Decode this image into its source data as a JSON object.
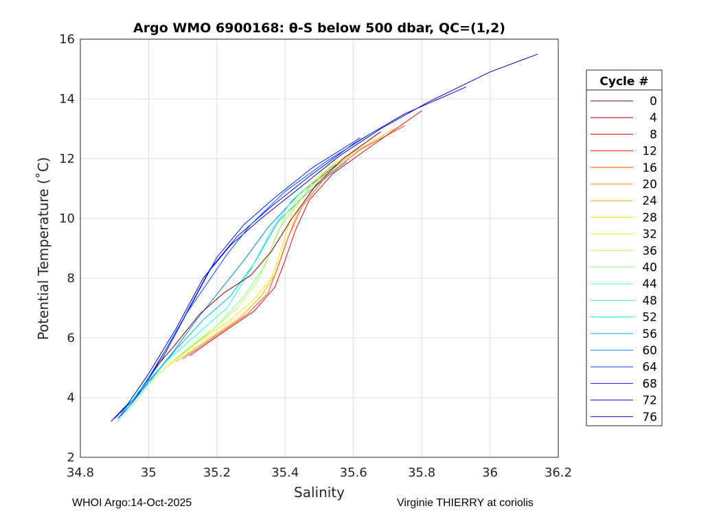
{
  "chart_data": {
    "type": "line",
    "title": "Argo WMO 6900168: θ-S below 500 dbar,  QC=(1,2)",
    "xlabel": "Salinity",
    "ylabel": "Potential Temperature (˚C)",
    "xlim": [
      34.8,
      36.2
    ],
    "ylim": [
      2,
      16
    ],
    "xticks": [
      "34.8",
      "35",
      "35.2",
      "35.4",
      "35.6",
      "35.8",
      "36",
      "36.2"
    ],
    "yticks": [
      "2",
      "4",
      "6",
      "8",
      "10",
      "12",
      "14",
      "16"
    ],
    "grid": true,
    "legend_title": "Cycle #",
    "legend_position": "right",
    "legend": [
      {
        "cycle": "0",
        "color": "#800000"
      },
      {
        "cycle": "4",
        "color": "#b30000"
      },
      {
        "cycle": "8",
        "color": "#e60000"
      },
      {
        "cycle": "12",
        "color": "#ff1a00"
      },
      {
        "cycle": "16",
        "color": "#ff4d00"
      },
      {
        "cycle": "20",
        "color": "#ff8000"
      },
      {
        "cycle": "24",
        "color": "#ffb300"
      },
      {
        "cycle": "28",
        "color": "#ffe600"
      },
      {
        "cycle": "32",
        "color": "#e6ff1a"
      },
      {
        "cycle": "36",
        "color": "#b3ff4d"
      },
      {
        "cycle": "40",
        "color": "#80ff80"
      },
      {
        "cycle": "44",
        "color": "#4dffb3"
      },
      {
        "cycle": "48",
        "color": "#1affe6"
      },
      {
        "cycle": "52",
        "color": "#00e6ff"
      },
      {
        "cycle": "56",
        "color": "#00b3ff"
      },
      {
        "cycle": "60",
        "color": "#0080ff"
      },
      {
        "cycle": "64",
        "color": "#004dff"
      },
      {
        "cycle": "68",
        "color": "#001aff"
      },
      {
        "cycle": "72",
        "color": "#0000e6"
      },
      {
        "cycle": "76",
        "color": "#0000b3"
      }
    ],
    "series": [
      {
        "color": "#0000b3",
        "x": [
          34.89,
          34.94,
          35.0,
          35.08,
          35.16,
          35.24,
          35.33,
          35.44,
          35.56,
          35.68,
          35.82,
          36.0,
          36.14
        ],
        "y": [
          3.2,
          3.8,
          4.8,
          6.3,
          8.0,
          9.1,
          10.0,
          11.0,
          12.1,
          13.0,
          13.9,
          14.9,
          15.5
        ]
      },
      {
        "color": "#0000e6",
        "x": [
          34.9,
          34.96,
          35.02,
          35.1,
          35.18,
          35.26,
          35.36,
          35.47,
          35.6,
          35.75,
          35.93
        ],
        "y": [
          3.3,
          4.0,
          5.0,
          6.6,
          8.3,
          9.4,
          10.4,
          11.4,
          12.5,
          13.5,
          14.4
        ]
      },
      {
        "color": "#001aff",
        "x": [
          34.91,
          34.97,
          35.04,
          35.12,
          35.2,
          35.28,
          35.37,
          35.48,
          35.62
        ],
        "y": [
          3.3,
          4.1,
          5.3,
          7.0,
          8.7,
          9.8,
          10.7,
          11.7,
          12.7
        ]
      },
      {
        "color": "#004dff",
        "x": [
          34.92,
          34.98,
          35.05,
          35.11,
          35.17,
          35.23,
          35.3,
          35.4,
          35.52,
          35.66
        ],
        "y": [
          3.4,
          4.3,
          5.6,
          6.8,
          7.8,
          8.8,
          9.8,
          10.9,
          11.9,
          12.9
        ]
      },
      {
        "color": "#0080ff",
        "x": [
          34.92,
          34.99,
          35.07,
          35.14,
          35.21,
          35.28,
          35.35,
          35.44,
          35.55
        ],
        "y": [
          3.5,
          4.4,
          5.5,
          6.6,
          7.6,
          8.6,
          9.7,
          10.8,
          11.8
        ]
      },
      {
        "color": "#00b3ff",
        "x": [
          34.93,
          35.0,
          35.08,
          35.16,
          35.24,
          35.31,
          35.38,
          35.47,
          35.58
        ],
        "y": [
          3.5,
          4.5,
          5.6,
          6.6,
          7.4,
          8.5,
          9.9,
          10.9,
          11.9
        ]
      },
      {
        "color": "#1affe6",
        "x": [
          34.91,
          34.97,
          35.05,
          35.14,
          35.23,
          35.3,
          35.36,
          35.42,
          35.5
        ],
        "y": [
          3.2,
          4.2,
          5.2,
          6.1,
          7.0,
          8.3,
          9.6,
          10.6,
          11.4
        ]
      },
      {
        "color": "#80ff80",
        "x": [
          34.95,
          35.02,
          35.1,
          35.2,
          35.28,
          35.34,
          35.38,
          35.44,
          35.52,
          35.62
        ],
        "y": [
          3.7,
          4.7,
          5.5,
          6.4,
          7.4,
          8.4,
          9.6,
          10.6,
          11.6,
          12.4
        ]
      },
      {
        "color": "#b3ff4d",
        "x": [
          35.0,
          35.08,
          35.17,
          35.26,
          35.32,
          35.36,
          35.4,
          35.46,
          35.55
        ],
        "y": [
          4.5,
          5.3,
          6.1,
          7.0,
          7.9,
          9.0,
          10.1,
          11.0,
          11.9
        ]
      },
      {
        "color": "#ffe600",
        "x": [
          35.05,
          35.15,
          35.24,
          35.31,
          35.36,
          35.39,
          35.42,
          35.48,
          35.58
        ],
        "y": [
          5.0,
          5.9,
          6.6,
          7.3,
          8.0,
          9.0,
          10.2,
          11.2,
          12.1
        ]
      },
      {
        "color": "#ffb300",
        "x": [
          35.08,
          35.18,
          35.27,
          35.33,
          35.37,
          35.4,
          35.44,
          35.5,
          35.6,
          35.72
        ],
        "y": [
          5.2,
          6.0,
          6.7,
          7.4,
          8.1,
          9.1,
          10.3,
          11.3,
          12.2,
          13.0
        ]
      },
      {
        "color": "#ff4d00",
        "x": [
          35.1,
          35.2,
          35.29,
          35.35,
          35.38,
          35.41,
          35.45,
          35.52,
          35.62,
          35.75
        ],
        "y": [
          5.3,
          6.1,
          6.8,
          7.5,
          8.4,
          9.4,
          10.4,
          11.4,
          12.3,
          13.1
        ]
      },
      {
        "color": "#e60000",
        "x": [
          35.12,
          35.22,
          35.31,
          35.37,
          35.4,
          35.43,
          35.47,
          35.54,
          35.65,
          35.8
        ],
        "y": [
          5.4,
          6.2,
          6.9,
          7.7,
          8.6,
          9.6,
          10.6,
          11.5,
          12.4,
          13.6
        ]
      },
      {
        "color": "#800000",
        "x": [
          35.02,
          35.08,
          35.15,
          35.22,
          35.3,
          35.36,
          35.42,
          35.49,
          35.57,
          35.68
        ],
        "y": [
          5.0,
          5.8,
          6.8,
          7.5,
          8.1,
          8.9,
          10.0,
          11.1,
          12.0,
          12.9
        ]
      }
    ]
  },
  "footer": {
    "left": "WHOI Argo:14-Oct-2025",
    "right": "Virginie THIERRY at coriolis"
  }
}
